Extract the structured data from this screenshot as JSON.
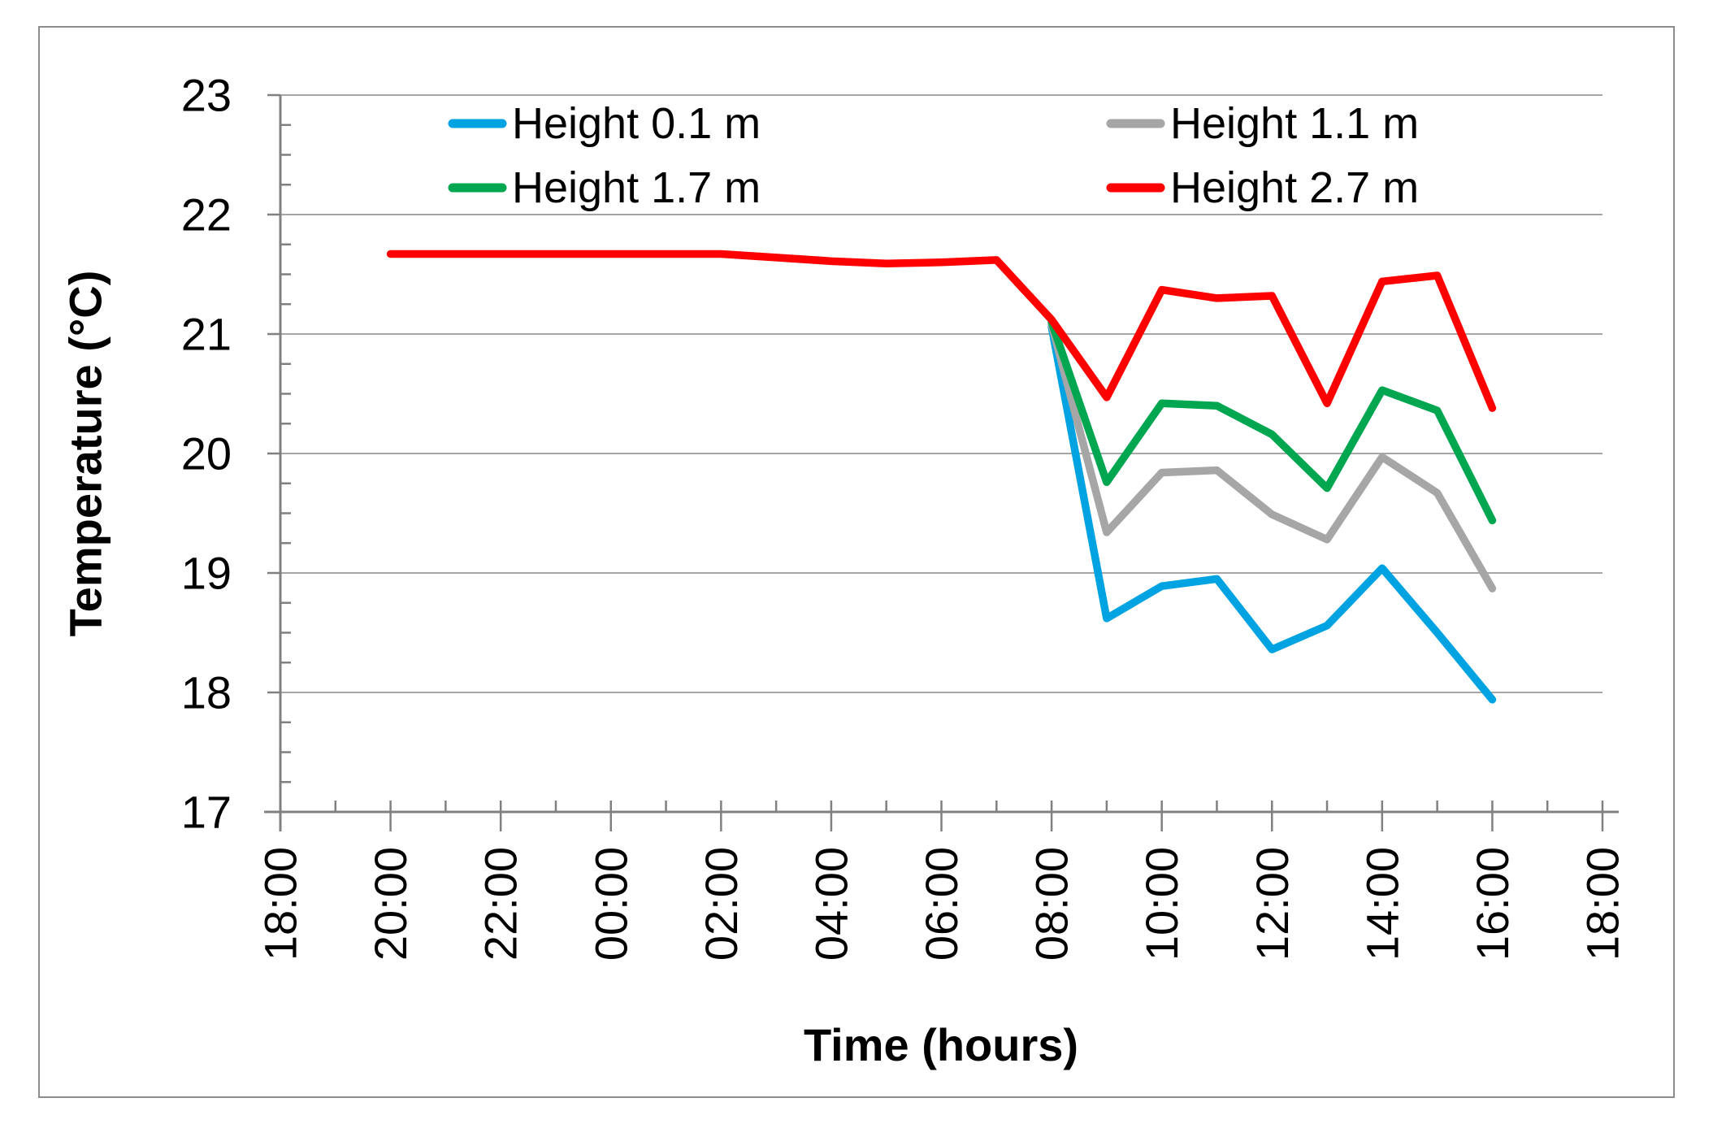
{
  "window": {
    "background": "#ffffff",
    "border_color": "#8c8c8c"
  },
  "chart_data": {
    "type": "line",
    "title": "",
    "xlabel": "Time (hours)",
    "ylabel": "Temperature (°C)",
    "x_axis": {
      "tick_labels": [
        "18:00",
        "20:00",
        "22:00",
        "00:00",
        "02:00",
        "04:00",
        "06:00",
        "08:00",
        "10:00",
        "12:00",
        "14:00",
        "16:00",
        "18:00"
      ],
      "span_hours": 24,
      "major_tick_every_hours": 2,
      "minor_tick_every_hours": 1
    },
    "y_axis": {
      "min": 17,
      "max": 23,
      "ticks": [
        17,
        18,
        19,
        20,
        21,
        22,
        23
      ],
      "minor_tick_step": 0.25
    },
    "grid": {
      "horizontal": true,
      "vertical": false,
      "color": "#a6a6a6"
    },
    "legend": {
      "position": "top-inside",
      "columns": 2
    },
    "series": [
      {
        "name": "Height 0.1 m",
        "color": "#00A3E2",
        "start_hour_offset": 14,
        "times": [
          "08:00",
          "09:00",
          "10:00",
          "11:00",
          "12:00",
          "13:00",
          "14:00",
          "15:00",
          "16:00"
        ],
        "values": [
          21.06,
          18.62,
          18.89,
          18.95,
          18.36,
          18.56,
          19.04,
          18.5,
          17.94
        ]
      },
      {
        "name": "Height 1.1 m",
        "color": "#A6A6A6",
        "start_hour_offset": 14,
        "times": [
          "08:00",
          "09:00",
          "10:00",
          "11:00",
          "12:00",
          "13:00",
          "14:00",
          "15:00",
          "16:00"
        ],
        "values": [
          21.08,
          19.34,
          19.84,
          19.86,
          19.49,
          19.28,
          19.97,
          19.67,
          18.87
        ]
      },
      {
        "name": "Height 1.7 m",
        "color": "#00A650",
        "start_hour_offset": 14,
        "times": [
          "08:00",
          "09:00",
          "10:00",
          "11:00",
          "12:00",
          "13:00",
          "14:00",
          "15:00",
          "16:00"
        ],
        "values": [
          21.1,
          19.76,
          20.42,
          20.4,
          20.16,
          19.71,
          20.53,
          20.36,
          19.44
        ]
      },
      {
        "name": "Height 2.7 m",
        "color": "#FF0000",
        "start_hour_offset": 2,
        "times": [
          "20:00",
          "21:00",
          "22:00",
          "23:00",
          "00:00",
          "01:00",
          "02:00",
          "03:00",
          "04:00",
          "05:00",
          "06:00",
          "07:00",
          "08:00",
          "09:00",
          "10:00",
          "11:00",
          "12:00",
          "13:00",
          "14:00",
          "15:00",
          "16:00"
        ],
        "values": [
          21.67,
          21.67,
          21.67,
          21.67,
          21.67,
          21.67,
          21.67,
          21.64,
          21.61,
          21.59,
          21.6,
          21.62,
          21.12,
          20.47,
          21.37,
          21.3,
          21.32,
          20.42,
          21.44,
          21.49,
          20.38
        ]
      }
    ]
  }
}
